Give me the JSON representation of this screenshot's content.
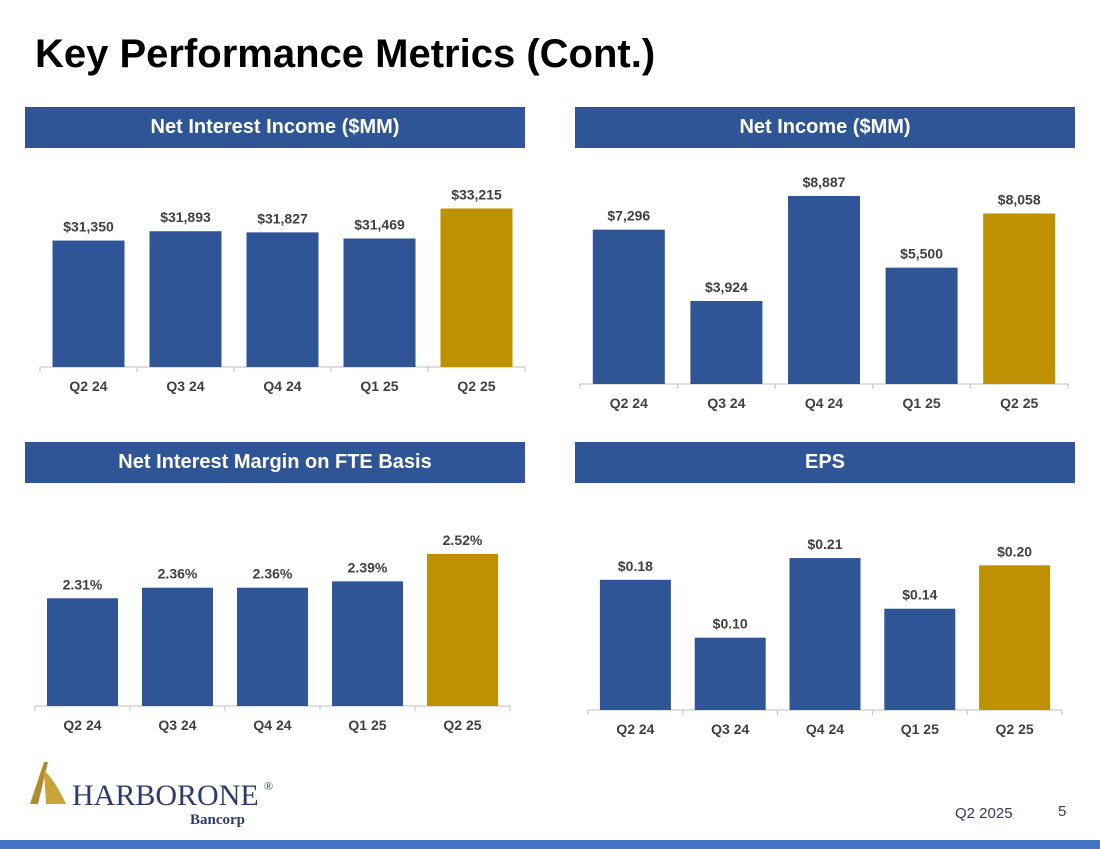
{
  "page": {
    "title": "Key Performance Metrics (Cont.)",
    "footer_label": "Q2 2025",
    "page_number": "5"
  },
  "logo": {
    "name_harbor": "HARBOR",
    "name_one": "ONE",
    "registered_mark": "®",
    "subtitle": "Bancorp"
  },
  "colors": {
    "header_bg": "#2f5597",
    "bar_default": "#2f5597",
    "bar_highlight": "#bf9000",
    "footer_bar": "#4472c4"
  },
  "chart_data": [
    {
      "type": "bar",
      "title": "Net Interest Income ($MM)",
      "categories": [
        "Q2 24",
        "Q3 24",
        "Q4 24",
        "Q1 25",
        "Q2 25"
      ],
      "values": [
        31350,
        31893,
        31827,
        31469,
        33215
      ],
      "data_labels": [
        "$31,350",
        "$31,893",
        "$31,827",
        "$31,469",
        "$33,215"
      ],
      "highlight_index": 4,
      "ylim": [
        24000,
        34000
      ]
    },
    {
      "type": "bar",
      "title": "Net Income ($MM)",
      "categories": [
        "Q2 24",
        "Q3 24",
        "Q4 24",
        "Q1 25",
        "Q2 25"
      ],
      "values": [
        7296,
        3924,
        8887,
        5500,
        8058
      ],
      "data_labels": [
        "$7,296",
        "$3,924",
        "$8,887",
        "$5,500",
        "$8,058"
      ],
      "highlight_index": 4,
      "ylim": [
        0,
        9500
      ]
    },
    {
      "type": "bar",
      "title": "Net Interest Margin on FTE Basis",
      "categories": [
        "Q2 24",
        "Q3 24",
        "Q4 24",
        "Q1 25",
        "Q2 25"
      ],
      "values": [
        2.31,
        2.36,
        2.36,
        2.39,
        2.52
      ],
      "data_labels": [
        "2.31%",
        "2.36%",
        "2.36%",
        "2.39%",
        "2.52%"
      ],
      "highlight_index": 4,
      "ylim": [
        1.8,
        2.6
      ]
    },
    {
      "type": "bar",
      "title": "EPS",
      "categories": [
        "Q2 24",
        "Q3 24",
        "Q4 24",
        "Q1 25",
        "Q2 25"
      ],
      "values": [
        0.18,
        0.1,
        0.21,
        0.14,
        0.2
      ],
      "data_labels": [
        "$0.18",
        "$0.10",
        "$0.21",
        "$0.14",
        "$0.20"
      ],
      "highlight_index": 4,
      "ylim": [
        0,
        0.235
      ]
    }
  ]
}
